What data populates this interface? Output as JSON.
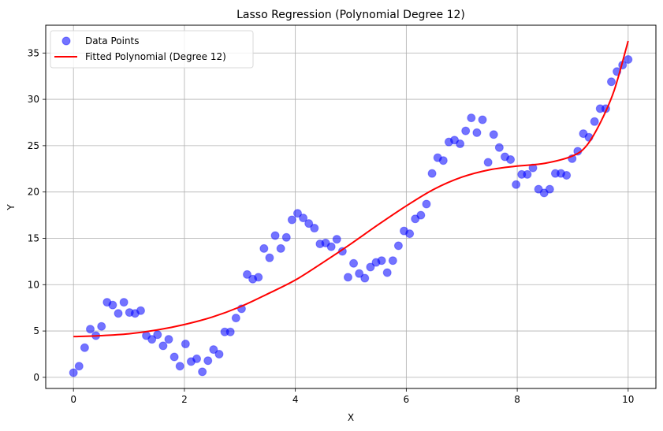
{
  "chart_data": {
    "type": "scatter",
    "title": "Lasso Regression (Polynomial Degree 12)",
    "xlabel": "X",
    "ylabel": "Y",
    "xlim": [
      -0.5,
      10.5
    ],
    "ylim": [
      -1.2,
      38
    ],
    "xticks": [
      0,
      2,
      4,
      6,
      8,
      10
    ],
    "yticks": [
      0,
      5,
      10,
      15,
      20,
      25,
      30,
      35
    ],
    "grid": true,
    "legend_position": "upper left",
    "series": [
      {
        "name": "Data Points",
        "kind": "scatter",
        "color": "#0000ff",
        "alpha": 0.55,
        "x_start": 0,
        "x_end": 10,
        "y": [
          0.5,
          1.2,
          3.2,
          5.2,
          4.5,
          5.5,
          8.1,
          7.8,
          6.9,
          8.1,
          7.0,
          6.9,
          7.2,
          4.5,
          4.1,
          4.6,
          3.4,
          4.1,
          2.2,
          1.2,
          3.6,
          1.7,
          2.0,
          0.6,
          1.8,
          3.0,
          2.5,
          4.9,
          4.9,
          6.4,
          7.4,
          11.1,
          10.6,
          10.8,
          13.9,
          12.9,
          15.3,
          13.9,
          15.1,
          17.0,
          17.7,
          17.2,
          16.6,
          16.1,
          14.4,
          14.5,
          14.1,
          14.9,
          13.6,
          10.8,
          12.3,
          11.2,
          10.7,
          11.9,
          12.4,
          12.6,
          11.3,
          12.6,
          14.2,
          15.8,
          15.5,
          17.1,
          17.5,
          18.7,
          22.0,
          23.7,
          23.4,
          25.4,
          25.6,
          25.2,
          26.6,
          28.0,
          26.4,
          27.8,
          23.2,
          26.2,
          24.8,
          23.8,
          23.5,
          20.8,
          21.9,
          21.9,
          22.6,
          20.3,
          19.9,
          20.3,
          22.0,
          22.0,
          21.8,
          23.6,
          24.4,
          26.3,
          25.9,
          27.6,
          29.0,
          29.0,
          31.9,
          33.0,
          33.7,
          34.3
        ]
      },
      {
        "name": "Fitted Polynomial (Degree 12)",
        "kind": "line",
        "color": "#ff0000",
        "x": [
          0,
          0.5,
          1,
          1.5,
          2,
          2.5,
          3,
          3.5,
          4,
          4.5,
          5,
          5.5,
          6,
          6.5,
          7,
          7.5,
          8,
          8.5,
          9,
          9.25,
          9.5,
          9.75,
          10
        ],
        "y": [
          4.4,
          4.5,
          4.7,
          5.1,
          5.7,
          6.5,
          7.6,
          9.0,
          10.5,
          12.4,
          14.4,
          16.5,
          18.5,
          20.3,
          21.6,
          22.4,
          22.8,
          23.1,
          23.9,
          25.0,
          27.5,
          31.0,
          36.3
        ]
      }
    ]
  },
  "legend": {
    "items": [
      {
        "label": "Data Points"
      },
      {
        "label": "Fitted Polynomial (Degree 12)"
      }
    ]
  }
}
